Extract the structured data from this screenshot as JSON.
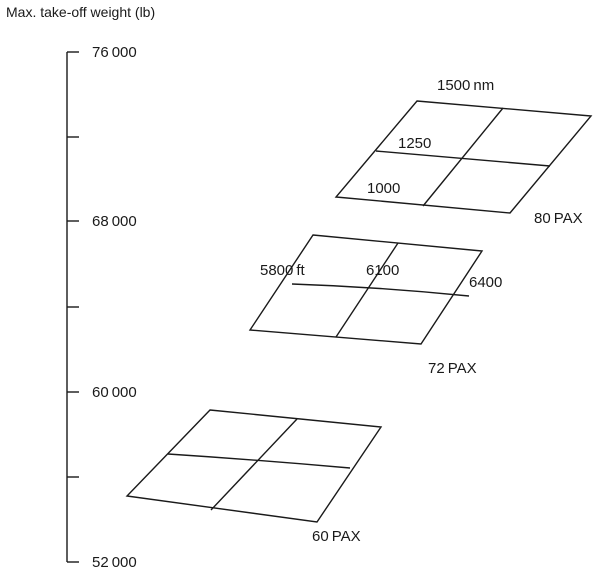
{
  "axis": {
    "title": "Max. take-off weight (lb)",
    "tick_labels": [
      "76 000",
      "68 000",
      "60 000",
      "52 000"
    ]
  },
  "panels": {
    "pax80": {
      "pax_label": "80 PAX",
      "range_labels": [
        "1500 nm",
        "1250",
        "1000"
      ]
    },
    "pax72": {
      "pax_label": "72 PAX",
      "runway_labels": [
        "5800 ft",
        "6100",
        "6400"
      ]
    },
    "pax60": {
      "pax_label": "60 PAX"
    }
  }
}
